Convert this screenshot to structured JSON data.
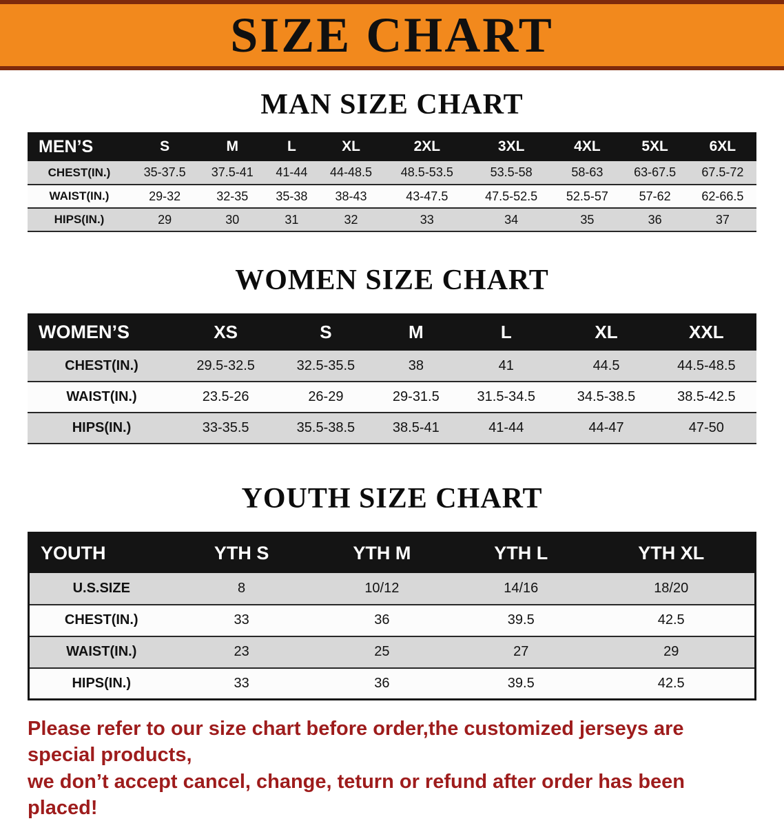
{
  "banner": {
    "title": "SIZE CHART"
  },
  "sections": {
    "men": {
      "heading": "MAN SIZE CHART",
      "table": {
        "header": [
          "MEN’S",
          "S",
          "M",
          "L",
          "XL",
          "2XL",
          "3XL",
          "4XL",
          "5XL",
          "6XL"
        ],
        "rows": [
          [
            "CHEST(IN.)",
            "35-37.5",
            "37.5-41",
            "41-44",
            "44-48.5",
            "48.5-53.5",
            "53.5-58",
            "58-63",
            "63-67.5",
            "67.5-72"
          ],
          [
            "WAIST(IN.)",
            "29-32",
            "32-35",
            "35-38",
            "38-43",
            "43-47.5",
            "47.5-52.5",
            "52.5-57",
            "57-62",
            "62-66.5"
          ],
          [
            "HIPS(IN.)",
            "29",
            "30",
            "31",
            "32",
            "33",
            "34",
            "35",
            "36",
            "37"
          ]
        ]
      }
    },
    "women": {
      "heading": "WOMEN SIZE CHART",
      "table": {
        "header": [
          "WOMEN’S",
          "XS",
          "S",
          "M",
          "L",
          "XL",
          "XXL"
        ],
        "rows": [
          [
            "CHEST(IN.)",
            "29.5-32.5",
            "32.5-35.5",
            "38",
            "41",
            "44.5",
            "44.5-48.5"
          ],
          [
            "WAIST(IN.)",
            "23.5-26",
            "26-29",
            "29-31.5",
            "31.5-34.5",
            "34.5-38.5",
            "38.5-42.5"
          ],
          [
            "HIPS(IN.)",
            "33-35.5",
            "35.5-38.5",
            "38.5-41",
            "41-44",
            "44-47",
            "47-50"
          ]
        ]
      }
    },
    "youth": {
      "heading": "YOUTH SIZE CHART",
      "table": {
        "header": [
          "YOUTH",
          "YTH S",
          "YTH M",
          "YTH L",
          "YTH XL"
        ],
        "rows": [
          [
            "U.S.SIZE",
            "8",
            "10/12",
            "14/16",
            "18/20"
          ],
          [
            "CHEST(IN.)",
            "33",
            "36",
            "39.5",
            "42.5"
          ],
          [
            "WAIST(IN.)",
            "23",
            "25",
            "27",
            "29"
          ],
          [
            "HIPS(IN.)",
            "33",
            "36",
            "39.5",
            "42.5"
          ]
        ]
      }
    }
  },
  "footer": {
    "line1": "Please refer to our size chart before order,the customized jerseys are special products,",
    "line2": "we don’t accept cancel, change, teturn or refund after order has been placed!"
  },
  "colors": {
    "banner_orange": "#F2891D",
    "banner_edge": "#7E2A0C",
    "header_black": "#141414",
    "row_gray": "#D8D8D8",
    "note_red": "#9E1C1C"
  }
}
